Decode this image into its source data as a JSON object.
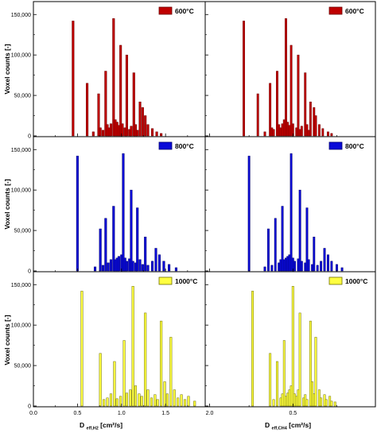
{
  "figure": {
    "ylabel": "Voxel counts [-]",
    "xlabel_left": {
      "main": "D",
      "sub": "eff,H2",
      "unit": " [cm²/s]"
    },
    "xlabel_right": {
      "main": "D",
      "sub": "eff,CH4",
      "unit": " [cm²/s]"
    }
  },
  "chart_data": [
    {
      "type": "bar",
      "panel": "top-left",
      "legend": "600°C",
      "legend_placement": "top-right",
      "fill": "#c00000",
      "stroke": "#6a0000",
      "xlim": [
        0.0,
        1.95
      ],
      "ylim": [
        0,
        165000
      ],
      "x_ticks": [
        "0.0",
        "0.5",
        "1.0",
        "1.5",
        "2.0"
      ],
      "y_ticks": [
        "0",
        "50,000",
        "100,000",
        "150,000"
      ],
      "x": [
        0.45,
        0.61,
        0.68,
        0.74,
        0.76,
        0.79,
        0.82,
        0.84,
        0.86,
        0.88,
        0.91,
        0.93,
        0.95,
        0.97,
        0.99,
        1.01,
        1.04,
        1.06,
        1.09,
        1.11,
        1.14,
        1.16,
        1.18,
        1.21,
        1.24,
        1.27,
        1.3,
        1.35,
        1.4,
        1.45
      ],
      "values": [
        142000,
        65000,
        5000,
        52000,
        10000,
        7000,
        80000,
        14000,
        10000,
        15000,
        145000,
        20000,
        17000,
        13000,
        112000,
        15000,
        10000,
        100000,
        8000,
        12000,
        78000,
        14000,
        7000,
        42000,
        35000,
        25000,
        14000,
        9000,
        5000,
        3000
      ]
    },
    {
      "type": "bar",
      "panel": "top-right",
      "legend": "600°C",
      "legend_placement": "top-right",
      "fill": "#c00000",
      "stroke": "#6a0000",
      "xlim": [
        0.0,
        0.97
      ],
      "ylim": [
        0,
        165000
      ],
      "x_ticks": [],
      "y_ticks": [],
      "x": [
        0.22,
        0.3,
        0.34,
        0.37,
        0.38,
        0.39,
        0.41,
        0.42,
        0.43,
        0.44,
        0.45,
        0.46,
        0.47,
        0.48,
        0.49,
        0.5,
        0.52,
        0.53,
        0.54,
        0.55,
        0.57,
        0.58,
        0.59,
        0.6,
        0.62,
        0.63,
        0.65,
        0.67,
        0.7,
        0.72
      ],
      "values": [
        142000,
        52000,
        5000,
        65000,
        10000,
        8000,
        80000,
        14000,
        10000,
        15000,
        20000,
        145000,
        17000,
        13000,
        112000,
        15000,
        10000,
        100000,
        8000,
        12000,
        78000,
        14000,
        7000,
        42000,
        35000,
        25000,
        14000,
        9000,
        5000,
        3000
      ]
    },
    {
      "type": "bar",
      "panel": "middle-left",
      "legend": "800°C",
      "legend_placement": "top-right",
      "fill": "#0a0ad8",
      "stroke": "#000070",
      "xlim": [
        0.0,
        1.95
      ],
      "ylim": [
        0,
        165000
      ],
      "x_ticks": [
        "0.0",
        "0.5",
        "1.0",
        "1.5",
        "2.0"
      ],
      "y_ticks": [
        "0",
        "50,000",
        "100,000",
        "150,000"
      ],
      "x": [
        0.5,
        0.7,
        0.76,
        0.79,
        0.82,
        0.85,
        0.88,
        0.91,
        0.93,
        0.95,
        0.97,
        1.0,
        1.02,
        1.04,
        1.06,
        1.09,
        1.11,
        1.13,
        1.16,
        1.18,
        1.21,
        1.24,
        1.27,
        1.3,
        1.35,
        1.39,
        1.43,
        1.48,
        1.54,
        1.62
      ],
      "values": [
        142000,
        5000,
        52000,
        7000,
        65000,
        10000,
        14000,
        80000,
        14000,
        16000,
        18000,
        20000,
        145000,
        16000,
        12000,
        15000,
        100000,
        12000,
        10000,
        78000,
        14000,
        8000,
        42000,
        7000,
        12000,
        28000,
        20000,
        12000,
        8000,
        4000
      ]
    },
    {
      "type": "bar",
      "panel": "middle-right",
      "legend": "800°C",
      "legend_placement": "top-right",
      "fill": "#0a0ad8",
      "stroke": "#000070",
      "xlim": [
        0.0,
        0.97
      ],
      "ylim": [
        0,
        165000
      ],
      "x_ticks": [],
      "y_ticks": [],
      "x": [
        0.25,
        0.34,
        0.36,
        0.38,
        0.4,
        0.42,
        0.43,
        0.44,
        0.45,
        0.46,
        0.47,
        0.48,
        0.49,
        0.5,
        0.51,
        0.53,
        0.54,
        0.55,
        0.57,
        0.58,
        0.59,
        0.61,
        0.62,
        0.64,
        0.66,
        0.68,
        0.7,
        0.72,
        0.75,
        0.78
      ],
      "values": [
        142000,
        5000,
        52000,
        7000,
        65000,
        10000,
        14000,
        80000,
        14000,
        16000,
        18000,
        20000,
        145000,
        16000,
        12000,
        15000,
        100000,
        12000,
        10000,
        78000,
        14000,
        8000,
        42000,
        7000,
        12000,
        28000,
        20000,
        12000,
        8000,
        4000
      ]
    },
    {
      "type": "bar",
      "panel": "bottom-left",
      "legend": "1000°C",
      "legend_placement": "top-right",
      "fill": "#ffff40",
      "stroke": "#6b6b00",
      "xlim": [
        0.0,
        1.95
      ],
      "ylim": [
        0,
        165000
      ],
      "x_ticks": [
        "0.0",
        "0.5",
        "1.0",
        "1.5",
        "2.0"
      ],
      "y_ticks": [
        "0",
        "50,000",
        "100,000",
        "150,000"
      ],
      "x": [
        0.55,
        0.76,
        0.8,
        0.84,
        0.88,
        0.92,
        0.95,
        0.99,
        1.03,
        1.06,
        1.1,
        1.13,
        1.16,
        1.2,
        1.23,
        1.27,
        1.3,
        1.34,
        1.38,
        1.41,
        1.45,
        1.49,
        1.52,
        1.56,
        1.6,
        1.64,
        1.68,
        1.72,
        1.76,
        1.83
      ],
      "values": [
        142000,
        65000,
        8000,
        10000,
        15000,
        55000,
        9000,
        12000,
        81000,
        16000,
        20000,
        148000,
        25000,
        15000,
        12000,
        115000,
        20000,
        10000,
        14000,
        8000,
        105000,
        30000,
        15000,
        85000,
        20000,
        10000,
        14000,
        8000,
        12000,
        6000
      ]
    },
    {
      "type": "bar",
      "panel": "bottom-right",
      "legend": "1000°C",
      "legend_placement": "top-right",
      "fill": "#ffff40",
      "stroke": "#6b6b00",
      "xlim": [
        0.0,
        0.97
      ],
      "ylim": [
        0,
        165000
      ],
      "x_ticks": [
        "0.5"
      ],
      "y_ticks": [],
      "x": [
        0.27,
        0.37,
        0.39,
        0.41,
        0.43,
        0.44,
        0.45,
        0.46,
        0.47,
        0.48,
        0.49,
        0.5,
        0.51,
        0.52,
        0.53,
        0.54,
        0.56,
        0.57,
        0.58,
        0.6,
        0.61,
        0.62,
        0.63,
        0.65,
        0.66,
        0.68,
        0.69,
        0.71,
        0.72,
        0.74
      ],
      "values": [
        142000,
        65000,
        8000,
        55000,
        10000,
        15000,
        81000,
        12000,
        16000,
        20000,
        25000,
        148000,
        15000,
        12000,
        20000,
        115000,
        10000,
        14000,
        8000,
        105000,
        30000,
        15000,
        85000,
        20000,
        10000,
        14000,
        8000,
        12000,
        6000,
        5000
      ]
    }
  ]
}
